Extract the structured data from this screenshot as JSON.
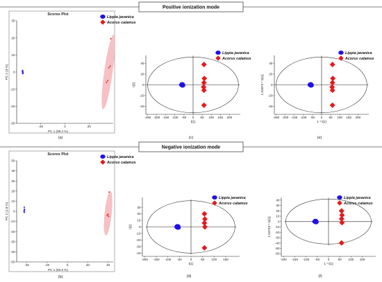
{
  "sections": {
    "positive": "Positive ionization mode",
    "negative": "Negative ionization mode"
  },
  "colors": {
    "blue": "#1f10e8",
    "red": "#e5191d",
    "ellipse_fill": "#f6b5b8"
  },
  "chart_data": [
    {
      "id": "a",
      "type": "scatter",
      "caption": "(a)",
      "title": "Scores Plot",
      "xlabel": "PC 1 (89.4 %)",
      "ylabel": "PC 2 (3 %)",
      "xlim": [
        -40,
        40
      ],
      "ylim": [
        -30,
        30
      ],
      "xticks": [
        -20,
        0,
        20
      ],
      "yticks": [
        -30,
        -20,
        -10,
        0,
        10,
        20,
        30
      ],
      "confidence_ellipse": {
        "cx": 36,
        "cy": 0,
        "rx": 3.5,
        "ry": 22,
        "tilt_deg": 8
      },
      "series": [
        {
          "name": "Lippia javanica",
          "color": "#1f10e8",
          "marker": "circle",
          "points": [
            [
              -35.0,
              0.6
            ],
            [
              -35.2,
              0.2
            ],
            [
              -34.8,
              -0.2
            ],
            [
              -35.0,
              -0.6
            ],
            [
              -35.1,
              0.9
            ],
            [
              -34.9,
              -0.9
            ]
          ]
        },
        {
          "name": "Acorus calamus",
          "color": "#e5191d",
          "marker": "diamond",
          "points": [
            [
              38,
              19.5
            ],
            [
              37.5,
              3.5
            ],
            [
              36.5,
              2.5
            ],
            [
              35.5,
              -5
            ],
            [
              34.5,
              -6
            ]
          ]
        }
      ]
    },
    {
      "id": "c",
      "type": "scatter",
      "caption": "(c)",
      "xlabel": "t[1]",
      "ylabel": "t[2]",
      "xlim": [
        -260,
        260
      ],
      "ylim": [
        -55,
        55
      ],
      "xticks": [
        -250,
        -200,
        -150,
        -100,
        -50,
        0,
        50,
        100,
        150,
        200
      ],
      "yticks": [
        -40,
        -20,
        0,
        20,
        40
      ],
      "ellipse": {
        "rx": 250,
        "ry": 52
      },
      "series": [
        {
          "name": "Lippia javanica",
          "color": "#1f10e8",
          "marker": "circle",
          "points": [
            [
              -60,
              1
            ],
            [
              -58,
              -1
            ],
            [
              -62,
              0
            ]
          ]
        },
        {
          "name": "Acorus calamus",
          "color": "#e5191d",
          "marker": "diamond",
          "points": [
            [
              60,
              38
            ],
            [
              62,
              12
            ],
            [
              60,
              4
            ],
            [
              58,
              -4
            ],
            [
              60,
              -10
            ],
            [
              60,
              -38
            ]
          ]
        }
      ]
    },
    {
      "id": "e",
      "type": "scatter",
      "caption": "(e)",
      "xlabel": "1 * t[1]",
      "ylabel": "1.02873 * to[1]",
      "xlim": [
        -260,
        260
      ],
      "ylim": [
        -55,
        55
      ],
      "xticks": [
        -250,
        -200,
        -150,
        -100,
        -50,
        0,
        50,
        100,
        150,
        200
      ],
      "yticks": [
        -40,
        -20,
        0,
        20,
        40
      ],
      "ellipse": {
        "rx": 250,
        "ry": 52
      },
      "series": [
        {
          "name": "Lippia javanica",
          "color": "#1f10e8",
          "marker": "circle",
          "points": [
            [
              -60,
              1
            ],
            [
              -58,
              -1
            ],
            [
              -62,
              0
            ]
          ]
        },
        {
          "name": "Acorus calamus",
          "color": "#e5191d",
          "marker": "diamond",
          "points": [
            [
              60,
              38
            ],
            [
              62,
              12
            ],
            [
              60,
              4
            ],
            [
              58,
              -4
            ],
            [
              60,
              -10
            ],
            [
              60,
              -38
            ]
          ]
        }
      ]
    },
    {
      "id": "b",
      "type": "scatter",
      "caption": "(b)",
      "title": "Scores Plot",
      "xlabel": "PC 1 (93.5 %)",
      "ylabel": "PC 2 (1.8 %)",
      "xlim": [
        -50,
        45
      ],
      "ylim": [
        -50,
        50
      ],
      "xticks": [
        -40,
        -20,
        0,
        20,
        40
      ],
      "yticks": [
        -50,
        -40,
        -30,
        -20,
        -10,
        0,
        10,
        20,
        30,
        40,
        50
      ],
      "confidence_ellipse": {
        "cx": 40,
        "cy": -2,
        "rx": 3.5,
        "ry": 22,
        "tilt_deg": 6
      },
      "series": [
        {
          "name": "Lippia javanica",
          "color": "#1f10e8",
          "marker": "circle",
          "points": [
            [
              -42.5,
              4
            ],
            [
              -42.3,
              1
            ],
            [
              -42.7,
              0
            ],
            [
              -42.5,
              -1
            ],
            [
              -42.4,
              2
            ]
          ]
        },
        {
          "name": "Acorus calamus",
          "color": "#e5191d",
          "marker": "diamond",
          "points": [
            [
              41,
              19
            ],
            [
              40,
              -3
            ],
            [
              39,
              -4
            ],
            [
              40.5,
              -5
            ]
          ]
        }
      ]
    },
    {
      "id": "d",
      "type": "scatter",
      "caption": "(d)",
      "xlabel": "t[1]",
      "ylabel": "t[2]",
      "xlim": [
        -210,
        210
      ],
      "ylim": [
        -45,
        45
      ],
      "xticks": [
        -200,
        -150,
        -100,
        -50,
        0,
        50,
        100,
        150
      ],
      "yticks": [
        -40,
        -30,
        -20,
        -10,
        0,
        10,
        20,
        30
      ],
      "ellipse": {
        "rx": 190,
        "ry": 40
      },
      "series": [
        {
          "name": "Lippia javanica",
          "color": "#1f10e8",
          "marker": "circle",
          "points": [
            [
              -58,
              1
            ],
            [
              -56,
              -1
            ],
            [
              -60,
              0
            ]
          ]
        },
        {
          "name": "Acorus calamus",
          "color": "#e5191d",
          "marker": "diamond",
          "points": [
            [
              58,
              20
            ],
            [
              60,
              12
            ],
            [
              58,
              6
            ],
            [
              60,
              0
            ],
            [
              58,
              -32
            ]
          ]
        }
      ]
    },
    {
      "id": "f",
      "type": "scatter",
      "caption": "(f)",
      "xlabel": "1 * t[1]",
      "ylabel": "1.04743 * to[1]",
      "xlim": [
        -210,
        210
      ],
      "ylim": [
        -65,
        45
      ],
      "xticks": [
        -200,
        -150,
        -100,
        -50,
        0,
        50,
        100,
        150
      ],
      "yticks": [
        -60,
        -50,
        -40,
        -30,
        -20,
        -10,
        0,
        10,
        20,
        30,
        40
      ],
      "ellipse": {
        "rx": 190,
        "ry": 42
      },
      "series": [
        {
          "name": "Lippia javanica",
          "color": "#1f10e8",
          "marker": "circle",
          "points": [
            [
              -58,
              1
            ],
            [
              -56,
              -1
            ],
            [
              -60,
              0
            ]
          ]
        },
        {
          "name": "Acorus calamus",
          "color": "#e5191d",
          "marker": "diamond",
          "points": [
            [
              58,
              20
            ],
            [
              60,
              12
            ],
            [
              58,
              5
            ],
            [
              60,
              -2
            ],
            [
              58,
              -40
            ]
          ]
        }
      ]
    }
  ]
}
